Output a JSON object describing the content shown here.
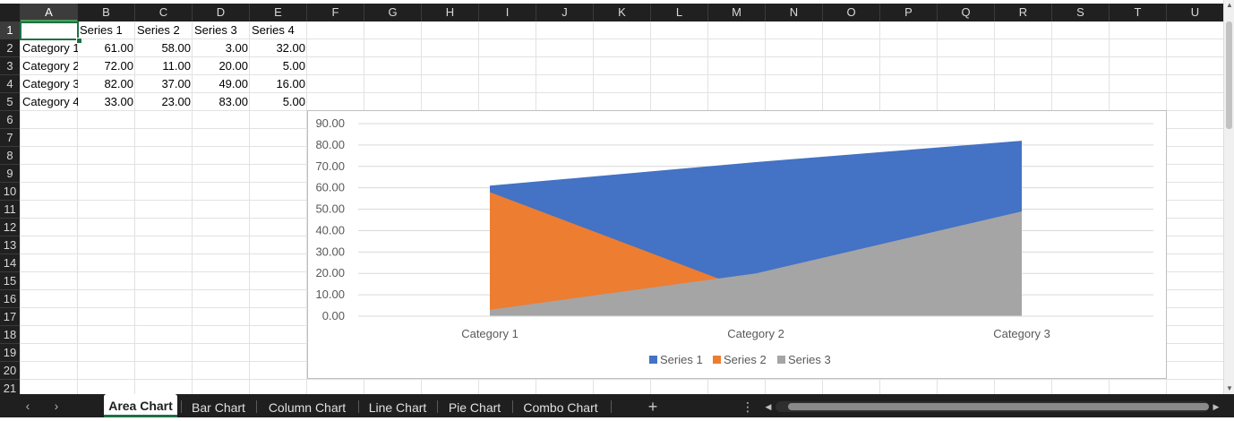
{
  "columns": [
    "A",
    "B",
    "C",
    "D",
    "E",
    "F",
    "G",
    "H",
    "I",
    "J",
    "K",
    "L",
    "M",
    "N",
    "O",
    "P",
    "Q",
    "R",
    "S",
    "T",
    "U"
  ],
  "rows": [
    "1",
    "2",
    "3",
    "4",
    "5",
    "6",
    "7",
    "8",
    "9",
    "10",
    "11",
    "12",
    "13",
    "14",
    "15",
    "16",
    "17",
    "18",
    "19",
    "20",
    "21"
  ],
  "selected_cell": "A1",
  "grid": {
    "headers": [
      "",
      "Series 1",
      "Series 2",
      "Series 3",
      "Series 4"
    ],
    "rows": [
      [
        "Category 1",
        "61.00",
        "58.00",
        "3.00",
        "32.00"
      ],
      [
        "Category 2",
        "72.00",
        "11.00",
        "20.00",
        "5.00"
      ],
      [
        "Category 3",
        "82.00",
        "37.00",
        "49.00",
        "16.00"
      ],
      [
        "Category 4",
        "33.00",
        "23.00",
        "83.00",
        "5.00"
      ]
    ]
  },
  "chart_data": {
    "type": "area",
    "categories": [
      "Category 1",
      "Category 2",
      "Category 3"
    ],
    "series": [
      {
        "name": "Series 1",
        "values": [
          61,
          72,
          82
        ],
        "color": "#4472C4"
      },
      {
        "name": "Series 2",
        "values": [
          58,
          11,
          37
        ],
        "color": "#ED7D31"
      },
      {
        "name": "Series 3",
        "values": [
          3,
          20,
          49
        ],
        "color": "#A5A5A5"
      }
    ],
    "ylim": [
      0,
      90
    ],
    "ytick_step": 10,
    "ytick_labels": [
      "0.00",
      "10.00",
      "20.00",
      "30.00",
      "40.00",
      "50.00",
      "60.00",
      "70.00",
      "80.00",
      "90.00"
    ],
    "grid": true,
    "legend": "bottom",
    "title": "",
    "xlabel": "",
    "ylabel": ""
  },
  "tabs": [
    {
      "label": "Area Chart",
      "active": true
    },
    {
      "label": "Bar Chart",
      "active": false
    },
    {
      "label": "Column Chart",
      "active": false
    },
    {
      "label": "Line Chart",
      "active": false
    },
    {
      "label": "Pie Chart",
      "active": false
    },
    {
      "label": "Combo Chart",
      "active": false
    }
  ],
  "tabbar": {
    "prev": "‹",
    "next": "›",
    "add": "+",
    "more": "⋮"
  }
}
